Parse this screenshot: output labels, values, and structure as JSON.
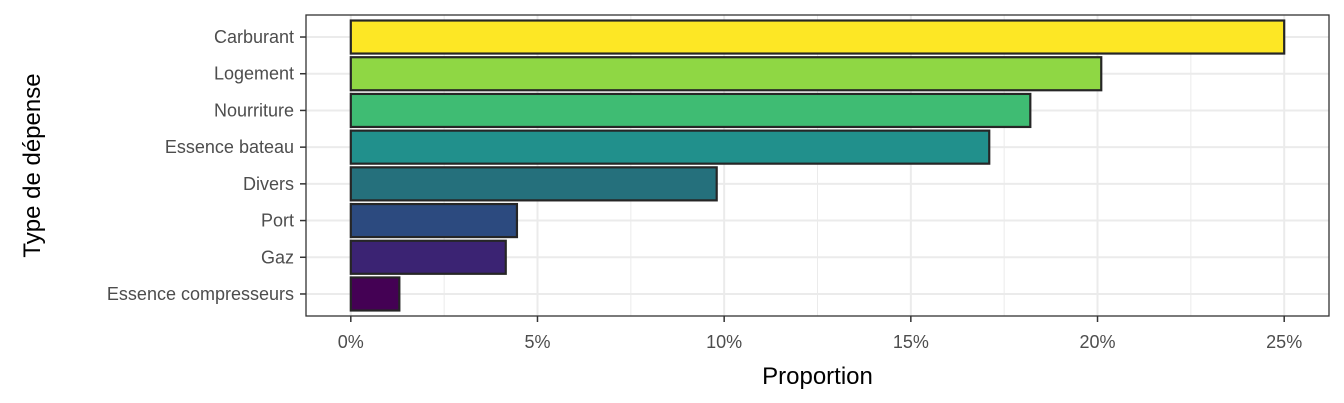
{
  "chart_data": {
    "type": "bar",
    "orientation": "horizontal",
    "title": "",
    "xlabel": "Proportion",
    "ylabel": "Type de dépense",
    "categories": [
      "Carburant",
      "Logement",
      "Nourriture",
      "Essence bateau",
      "Divers",
      "Port",
      "Gaz",
      "Essence compresseurs"
    ],
    "values": [
      25.0,
      20.1,
      18.2,
      17.1,
      9.8,
      4.45,
      4.15,
      1.3
    ],
    "xlim": [
      -1.2,
      26.2
    ],
    "xticks": [
      0,
      5,
      10,
      15,
      20,
      25
    ],
    "xtick_labels": [
      "0%",
      "5%",
      "10%",
      "15%",
      "20%",
      "25%"
    ],
    "colors": [
      "#FDE725",
      "#8FD744",
      "#3FBC73",
      "#21908C",
      "#25707C",
      "#2C4A7F",
      "#3B2373",
      "#440154"
    ],
    "bar_outline": "#262626",
    "grid": true,
    "grid_color": "#EBEBEB",
    "panel_border": "#333333",
    "legend": "none"
  }
}
